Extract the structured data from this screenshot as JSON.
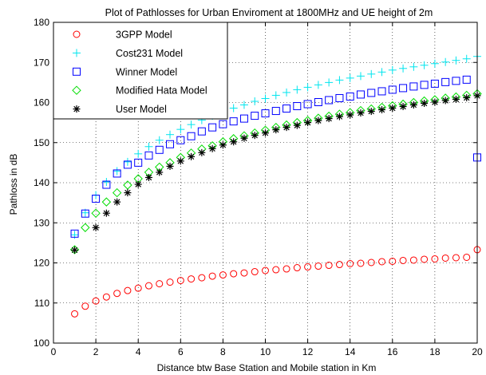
{
  "chart_data": {
    "type": "scatter",
    "title": "Plot of Pathlosses for Urban Enviroment at 1800MHz and UE height of 2m",
    "xlabel": "Distance btw Base Station and Mobile station in Km",
    "ylabel": "Pathloss in dB",
    "xlim": [
      0,
      20
    ],
    "ylim": [
      100,
      180
    ],
    "xticks": [
      0,
      2,
      4,
      6,
      8,
      10,
      12,
      14,
      16,
      18,
      20
    ],
    "yticks": [
      100,
      110,
      120,
      130,
      140,
      150,
      160,
      170,
      180
    ],
    "grid": "dotted",
    "legend_position": "top-left",
    "x": [
      1,
      1.5,
      2,
      2.5,
      3,
      3.5,
      4,
      4.5,
      5,
      5.5,
      6,
      6.5,
      7,
      7.5,
      8,
      8.5,
      9,
      9.5,
      10,
      10.5,
      11,
      11.5,
      12,
      12.5,
      13,
      13.5,
      14,
      14.5,
      15,
      15.5,
      16,
      16.5,
      17,
      17.5,
      18,
      18.5,
      19,
      19.5,
      20
    ],
    "series": [
      {
        "name": "3GPP Model",
        "marker": "circle",
        "color": "#ff0000",
        "values": [
          107.3,
          109.2,
          110.5,
          111.5,
          112.4,
          113.1,
          113.7,
          114.3,
          114.8,
          115.2,
          115.6,
          116.0,
          116.3,
          116.7,
          117.0,
          117.3,
          117.5,
          117.8,
          118.1,
          118.3,
          118.5,
          118.8,
          119.0,
          119.2,
          119.4,
          119.6,
          119.8,
          119.9,
          120.1,
          120.3,
          120.4,
          120.6,
          120.7,
          120.9,
          121.0,
          121.2,
          121.3,
          121.4,
          123.3
        ]
      },
      {
        "name": "Cost231 Model",
        "marker": "plus",
        "color": "#00e5ee",
        "values": [
          127.0,
          132.5,
          136.9,
          140.2,
          142.9,
          145.2,
          147.2,
          149.0,
          150.6,
          152.0,
          153.3,
          154.5,
          155.6,
          156.7,
          157.6,
          158.6,
          159.4,
          160.3,
          161.0,
          161.8,
          162.5,
          163.2,
          163.8,
          164.4,
          165.0,
          165.6,
          166.1,
          166.6,
          167.1,
          167.6,
          168.1,
          168.5,
          168.9,
          169.3,
          169.7,
          170.1,
          170.5,
          170.9,
          171.5
        ]
      },
      {
        "name": "Winner Model",
        "marker": "square",
        "color": "#0000ff",
        "values": [
          127.3,
          132.3,
          136.0,
          139.5,
          142.3,
          144.5,
          145.0,
          146.8,
          148.2,
          149.6,
          150.6,
          151.6,
          152.8,
          153.8,
          154.6,
          155.3,
          156.0,
          156.7,
          157.3,
          157.9,
          158.5,
          159.1,
          159.6,
          160.1,
          160.6,
          161.1,
          161.5,
          162.0,
          162.4,
          162.8,
          163.2,
          163.6,
          164.0,
          164.4,
          164.7,
          165.1,
          165.4,
          165.7,
          146.3
        ]
      },
      {
        "name": "Modified Hata Model",
        "marker": "diamond",
        "color": "#00dd00",
        "values": [
          123.3,
          128.8,
          132.4,
          135.2,
          137.5,
          139.4,
          141.0,
          142.6,
          143.9,
          145.0,
          146.3,
          147.4,
          148.4,
          149.2,
          150.2,
          151.0,
          151.7,
          152.4,
          153.1,
          153.8,
          154.4,
          155.0,
          155.5,
          156.1,
          156.6,
          157.1,
          157.5,
          158.0,
          158.4,
          158.8,
          159.2,
          159.6,
          160.0,
          160.4,
          160.7,
          161.1,
          161.4,
          161.8,
          162.2
        ]
      },
      {
        "name": "User Model",
        "marker": "asterisk",
        "color": "#000000",
        "values": [
          123.2,
          null,
          128.8,
          132.4,
          135.2,
          137.5,
          139.6,
          141.3,
          142.6,
          144.1,
          145.4,
          146.5,
          147.5,
          148.5,
          149.4,
          150.2,
          151.1,
          151.8,
          152.4,
          153.2,
          153.8,
          154.3,
          155.0,
          155.5,
          156.0,
          156.5,
          156.9,
          157.4,
          157.8,
          158.2,
          158.6,
          159.0,
          159.4,
          159.8,
          160.1,
          160.5,
          160.8,
          161.2,
          161.7
        ]
      }
    ]
  }
}
